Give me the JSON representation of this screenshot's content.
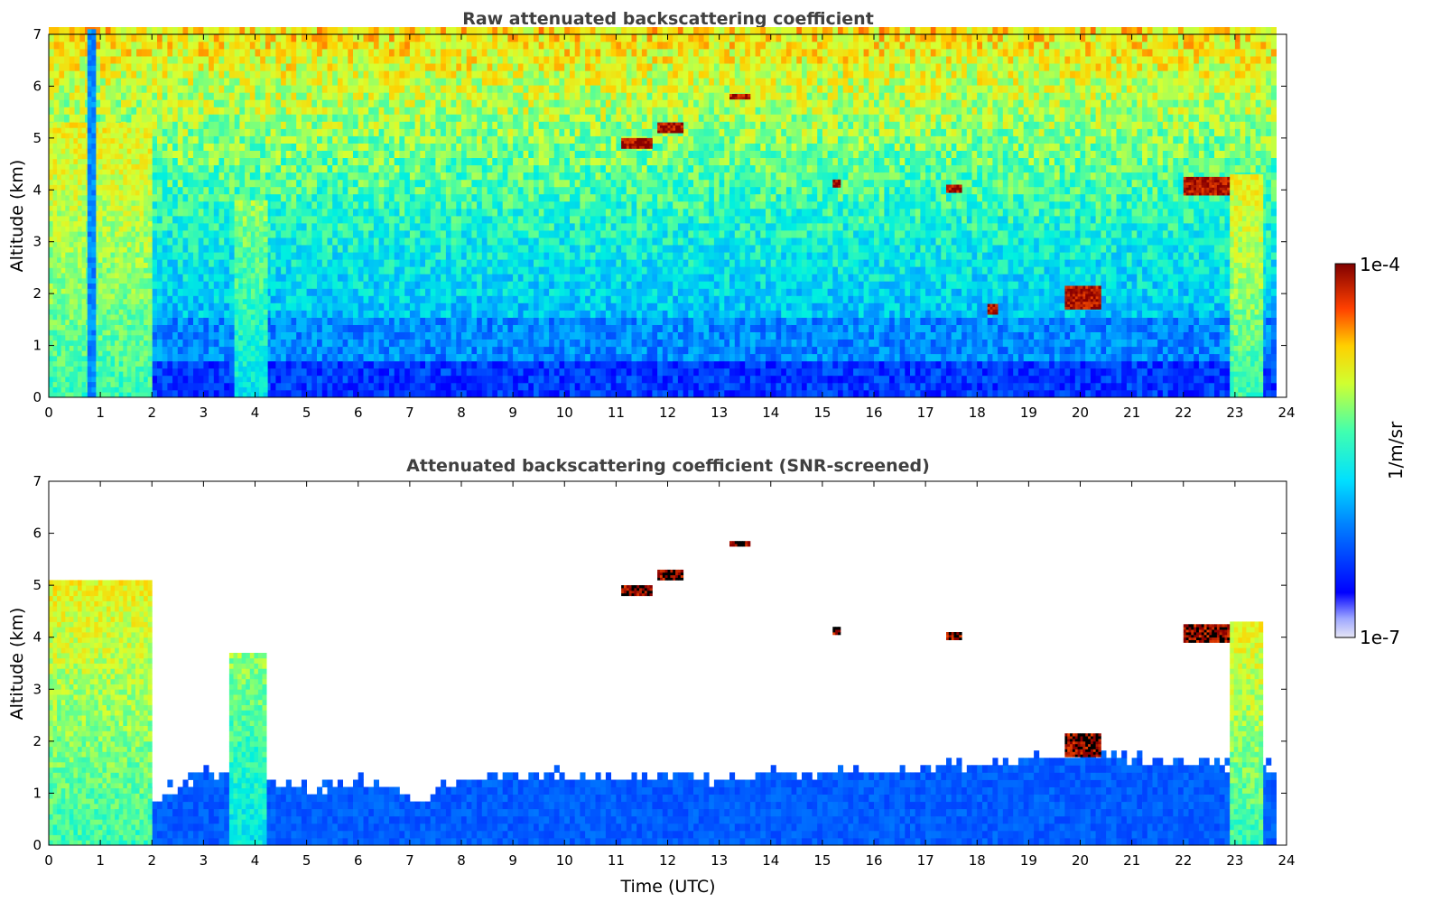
{
  "chart_data": [
    {
      "type": "heatmap",
      "title": "Raw attenuated backscattering coefficient",
      "xlabel": "",
      "ylabel": "Altitude (km)",
      "xlim": [
        0,
        24
      ],
      "ylim": [
        0,
        7
      ],
      "x_ticks": [
        "0",
        "1",
        "2",
        "3",
        "4",
        "5",
        "6",
        "7",
        "8",
        "9",
        "10",
        "11",
        "12",
        "13",
        "14",
        "15",
        "16",
        "17",
        "18",
        "19",
        "20",
        "21",
        "22",
        "23",
        "24"
      ],
      "y_ticks": [
        "0",
        "1",
        "2",
        "3",
        "4",
        "5",
        "6",
        "7"
      ],
      "features": [
        {
          "name": "dense aerosol/cloud columns",
          "time_range": [
            0.0,
            2.0
          ],
          "alt_range": [
            0,
            5.2
          ],
          "level": "high"
        },
        {
          "name": "low-signal column",
          "time_range": [
            0.75,
            0.85
          ],
          "alt_range": [
            0,
            7
          ],
          "level": "low"
        },
        {
          "name": "aerosol column",
          "time_range": [
            3.6,
            4.2
          ],
          "alt_range": [
            0,
            3.8
          ],
          "level": "medium"
        },
        {
          "name": "cloud layer",
          "time_range": [
            11.1,
            11.7
          ],
          "alt_range": [
            4.8,
            4.95
          ],
          "level": "saturated"
        },
        {
          "name": "cloud layer",
          "time_range": [
            11.8,
            12.3
          ],
          "alt_range": [
            5.1,
            5.25
          ],
          "level": "saturated"
        },
        {
          "name": "cloud layer",
          "time_range": [
            13.2,
            13.6
          ],
          "alt_range": [
            5.75,
            5.85
          ],
          "level": "saturated"
        },
        {
          "name": "cloud layer",
          "time_range": [
            15.2,
            15.35
          ],
          "alt_range": [
            4.05,
            4.15
          ],
          "level": "saturated"
        },
        {
          "name": "cloud layer",
          "time_range": [
            17.4,
            17.7
          ],
          "alt_range": [
            3.95,
            4.1
          ],
          "level": "saturated"
        },
        {
          "name": "cloud layer",
          "time_range": [
            18.2,
            18.4
          ],
          "alt_range": [
            1.6,
            1.8
          ],
          "level": "saturated"
        },
        {
          "name": "cloud layer",
          "time_range": [
            19.7,
            20.4
          ],
          "alt_range": [
            1.7,
            2.1
          ],
          "level": "saturated"
        },
        {
          "name": "cloud layer",
          "time_range": [
            22.0,
            22.9
          ],
          "alt_range": [
            3.9,
            4.2
          ],
          "level": "saturated"
        },
        {
          "name": "cloud/precip columns",
          "time_range": [
            22.9,
            23.5
          ],
          "alt_range": [
            0,
            4.3
          ],
          "level": "high"
        }
      ],
      "colorbar": {
        "label": "1/m/sr",
        "min_label": "1e-7",
        "max_label": "1e-4",
        "scale": "log"
      }
    },
    {
      "type": "heatmap",
      "title": "Attenuated backscattering coefficient (SNR-screened)",
      "xlabel": "Time (UTC)",
      "ylabel": "Altitude (km)",
      "xlim": [
        0,
        24
      ],
      "ylim": [
        0,
        7
      ],
      "x_ticks": [
        "0",
        "1",
        "2",
        "3",
        "4",
        "5",
        "6",
        "7",
        "8",
        "9",
        "10",
        "11",
        "12",
        "13",
        "14",
        "15",
        "16",
        "17",
        "18",
        "19",
        "20",
        "21",
        "22",
        "23",
        "24"
      ],
      "y_ticks": [
        "0",
        "1",
        "2",
        "3",
        "4",
        "5",
        "6",
        "7"
      ],
      "boundary_layer_top_km": [
        [
          0,
          1.0
        ],
        [
          2,
          0.9
        ],
        [
          3,
          1.3
        ],
        [
          4,
          1.3
        ],
        [
          5,
          1.0
        ],
        [
          6,
          1.2
        ],
        [
          7,
          0.8
        ],
        [
          8,
          1.2
        ],
        [
          9,
          1.3
        ],
        [
          10,
          1.3
        ],
        [
          11,
          1.2
        ],
        [
          12,
          1.3
        ],
        [
          13,
          1.2
        ],
        [
          14,
          1.3
        ],
        [
          15,
          1.3
        ],
        [
          16,
          1.4
        ],
        [
          17,
          1.4
        ],
        [
          18,
          1.5
        ],
        [
          19,
          1.6
        ],
        [
          20,
          1.7
        ],
        [
          21,
          1.6
        ],
        [
          22,
          1.5
        ],
        [
          23,
          1.5
        ],
        [
          23.8,
          1.4
        ]
      ],
      "features": [
        {
          "name": "dense aerosol/cloud columns",
          "time_range": [
            0.0,
            2.0
          ],
          "alt_range": [
            0,
            5.0
          ],
          "level": "high"
        },
        {
          "name": "aerosol column",
          "time_range": [
            3.5,
            4.2
          ],
          "alt_range": [
            0,
            3.7
          ],
          "level": "medium"
        },
        {
          "name": "cloud layer",
          "time_range": [
            11.1,
            11.7
          ],
          "alt_range": [
            4.8,
            4.95
          ],
          "level": "saturated"
        },
        {
          "name": "cloud layer",
          "time_range": [
            11.8,
            12.3
          ],
          "alt_range": [
            5.1,
            5.25
          ],
          "level": "saturated"
        },
        {
          "name": "cloud layer",
          "time_range": [
            13.2,
            13.6
          ],
          "alt_range": [
            5.75,
            5.85
          ],
          "level": "saturated"
        },
        {
          "name": "cloud layer",
          "time_range": [
            15.2,
            15.35
          ],
          "alt_range": [
            4.05,
            4.15
          ],
          "level": "saturated"
        },
        {
          "name": "cloud layer",
          "time_range": [
            17.4,
            17.7
          ],
          "alt_range": [
            3.95,
            4.1
          ],
          "level": "saturated"
        },
        {
          "name": "cloud layer",
          "time_range": [
            19.7,
            20.4
          ],
          "alt_range": [
            1.7,
            2.1
          ],
          "level": "saturated"
        },
        {
          "name": "cloud layer",
          "time_range": [
            22.0,
            22.9
          ],
          "alt_range": [
            3.9,
            4.2
          ],
          "level": "saturated"
        },
        {
          "name": "cloud/precip columns",
          "time_range": [
            22.9,
            23.5
          ],
          "alt_range": [
            0,
            4.3
          ],
          "level": "high"
        }
      ]
    }
  ]
}
